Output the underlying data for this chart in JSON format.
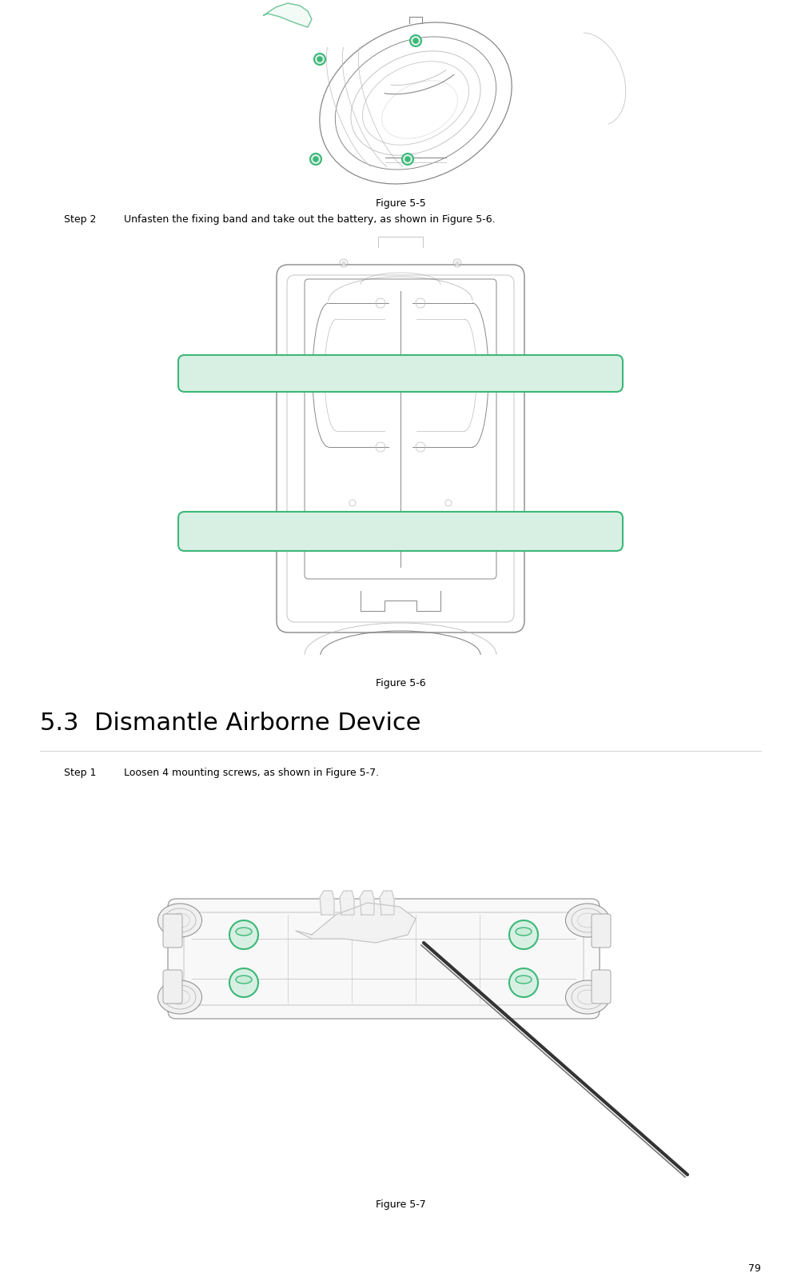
{
  "page_width": 10.02,
  "page_height": 16.08,
  "dpi": 100,
  "background_color": "#ffffff",
  "page_number": "79",
  "figure5_5_caption": "Figure 5-5",
  "step2_label": "Step 2",
  "step2_text": "Unfasten the fixing band and take out the battery, as shown in Figure 5-6.",
  "figure5_6_caption": "Figure 5-6",
  "section_title": "5.3  Dismantle Airborne Device",
  "step1_label": "Step 1",
  "step1_text": "Loosen 4 mounting screws, as shown in Figure 5-7.",
  "figure5_7_caption": "Figure 5-7",
  "green_color": "#3cb878",
  "green_fill": "#d8f0e4",
  "line_color": "#888888",
  "light_line": "#bbbbbb",
  "very_light": "#dddddd",
  "text_fontsize": 9,
  "caption_fontsize": 9,
  "section_fontsize": 22,
  "page_num_fontsize": 9
}
